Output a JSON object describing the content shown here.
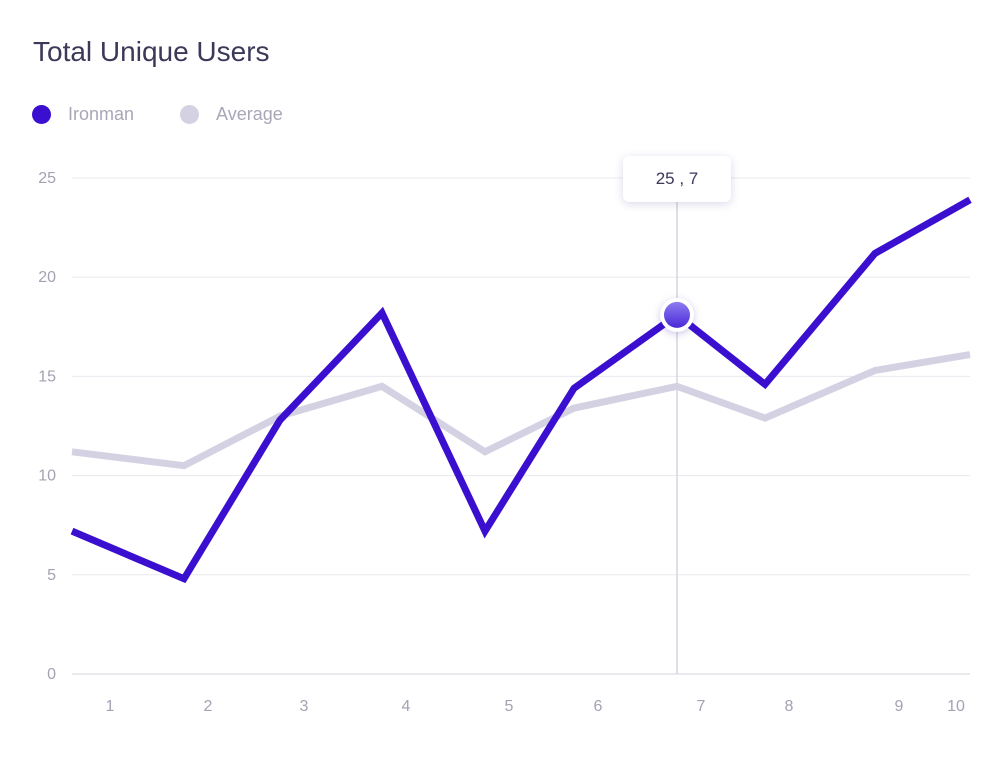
{
  "chart_data": {
    "type": "line",
    "title": "Total Unique Users",
    "x": [
      1,
      2,
      3,
      4,
      5,
      6,
      7,
      8,
      9,
      10
    ],
    "ylim": [
      0,
      25
    ],
    "yticks": [
      0,
      5,
      10,
      15,
      20,
      25
    ],
    "grid": true,
    "legend_position": "top-left",
    "series": [
      {
        "name": "Ironman",
        "color": "#3a0fcf",
        "values": [
          7.2,
          4.8,
          12.8,
          18.2,
          7.2,
          14.4,
          18.1,
          14.6,
          21.2,
          23.9
        ]
      },
      {
        "name": "Average",
        "color": "#d4d1e3",
        "values": [
          11.2,
          10.5,
          13.0,
          14.5,
          11.2,
          13.4,
          14.5,
          12.9,
          15.3,
          16.1
        ]
      }
    ],
    "highlight": {
      "series": "Ironman",
      "x": 7,
      "tooltip": "25 , 7"
    }
  }
}
